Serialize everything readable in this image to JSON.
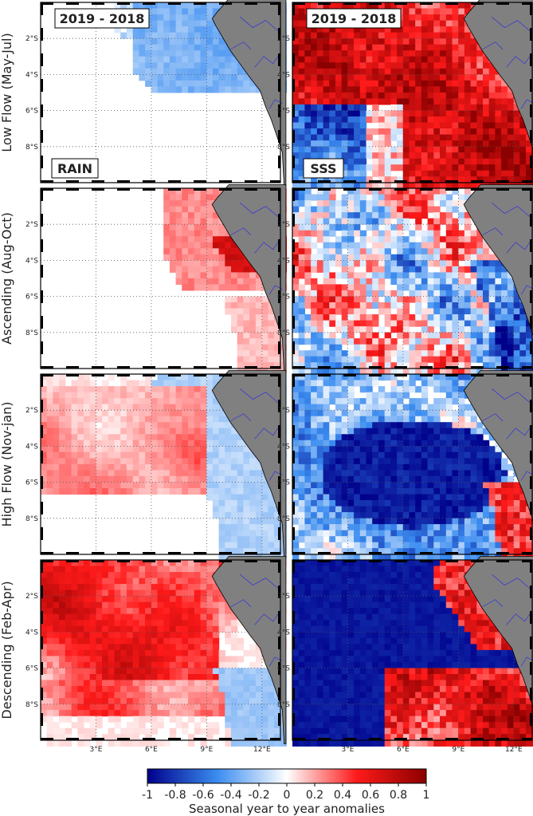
{
  "chart_data": {
    "type": "heatmap",
    "layout": "4x2 panel grid",
    "rows": [
      {
        "label": "Low Flow (May-Jul)"
      },
      {
        "label": "Ascending (Aug-Oct)"
      },
      {
        "label": "High Flow (Nov-jan)"
      },
      {
        "label": "Descending (Feb-Apr)"
      }
    ],
    "columns": [
      {
        "variable": "RAIN",
        "period": "2019 - 2018"
      },
      {
        "variable": "SSS",
        "period": "2019 - 2018"
      }
    ],
    "x_ticks": [
      "3°E",
      "6°E",
      "9°E",
      "12°E"
    ],
    "x_tick_values": [
      3,
      6,
      9,
      12
    ],
    "y_ticks": [
      "2°S",
      "4°S",
      "6°S",
      "8°S"
    ],
    "y_tick_values": [
      -2,
      -4,
      -6,
      -8
    ],
    "xlim": [
      0,
      13
    ],
    "ylim": [
      -10,
      0
    ],
    "colorbar": {
      "label": "Seasonal year to year anomalies",
      "range": [
        -1,
        1
      ],
      "ticks": [
        "-1",
        "-0.8",
        "-0.6",
        "-0.4",
        "-0.2",
        "0",
        "0.2",
        "0.4",
        "0.6",
        "0.8",
        "1"
      ],
      "colormap": "blue-white-red diverging",
      "colors": {
        "neg_max": "#00008b",
        "neg_mid": "#3a8cf0",
        "zero": "#ffffff",
        "pos_mid": "#ff1a1a",
        "pos_max": "#8b0000"
      }
    },
    "land_color": "#808080",
    "river_color": "#3a3ad0",
    "grid": "dotted"
  }
}
